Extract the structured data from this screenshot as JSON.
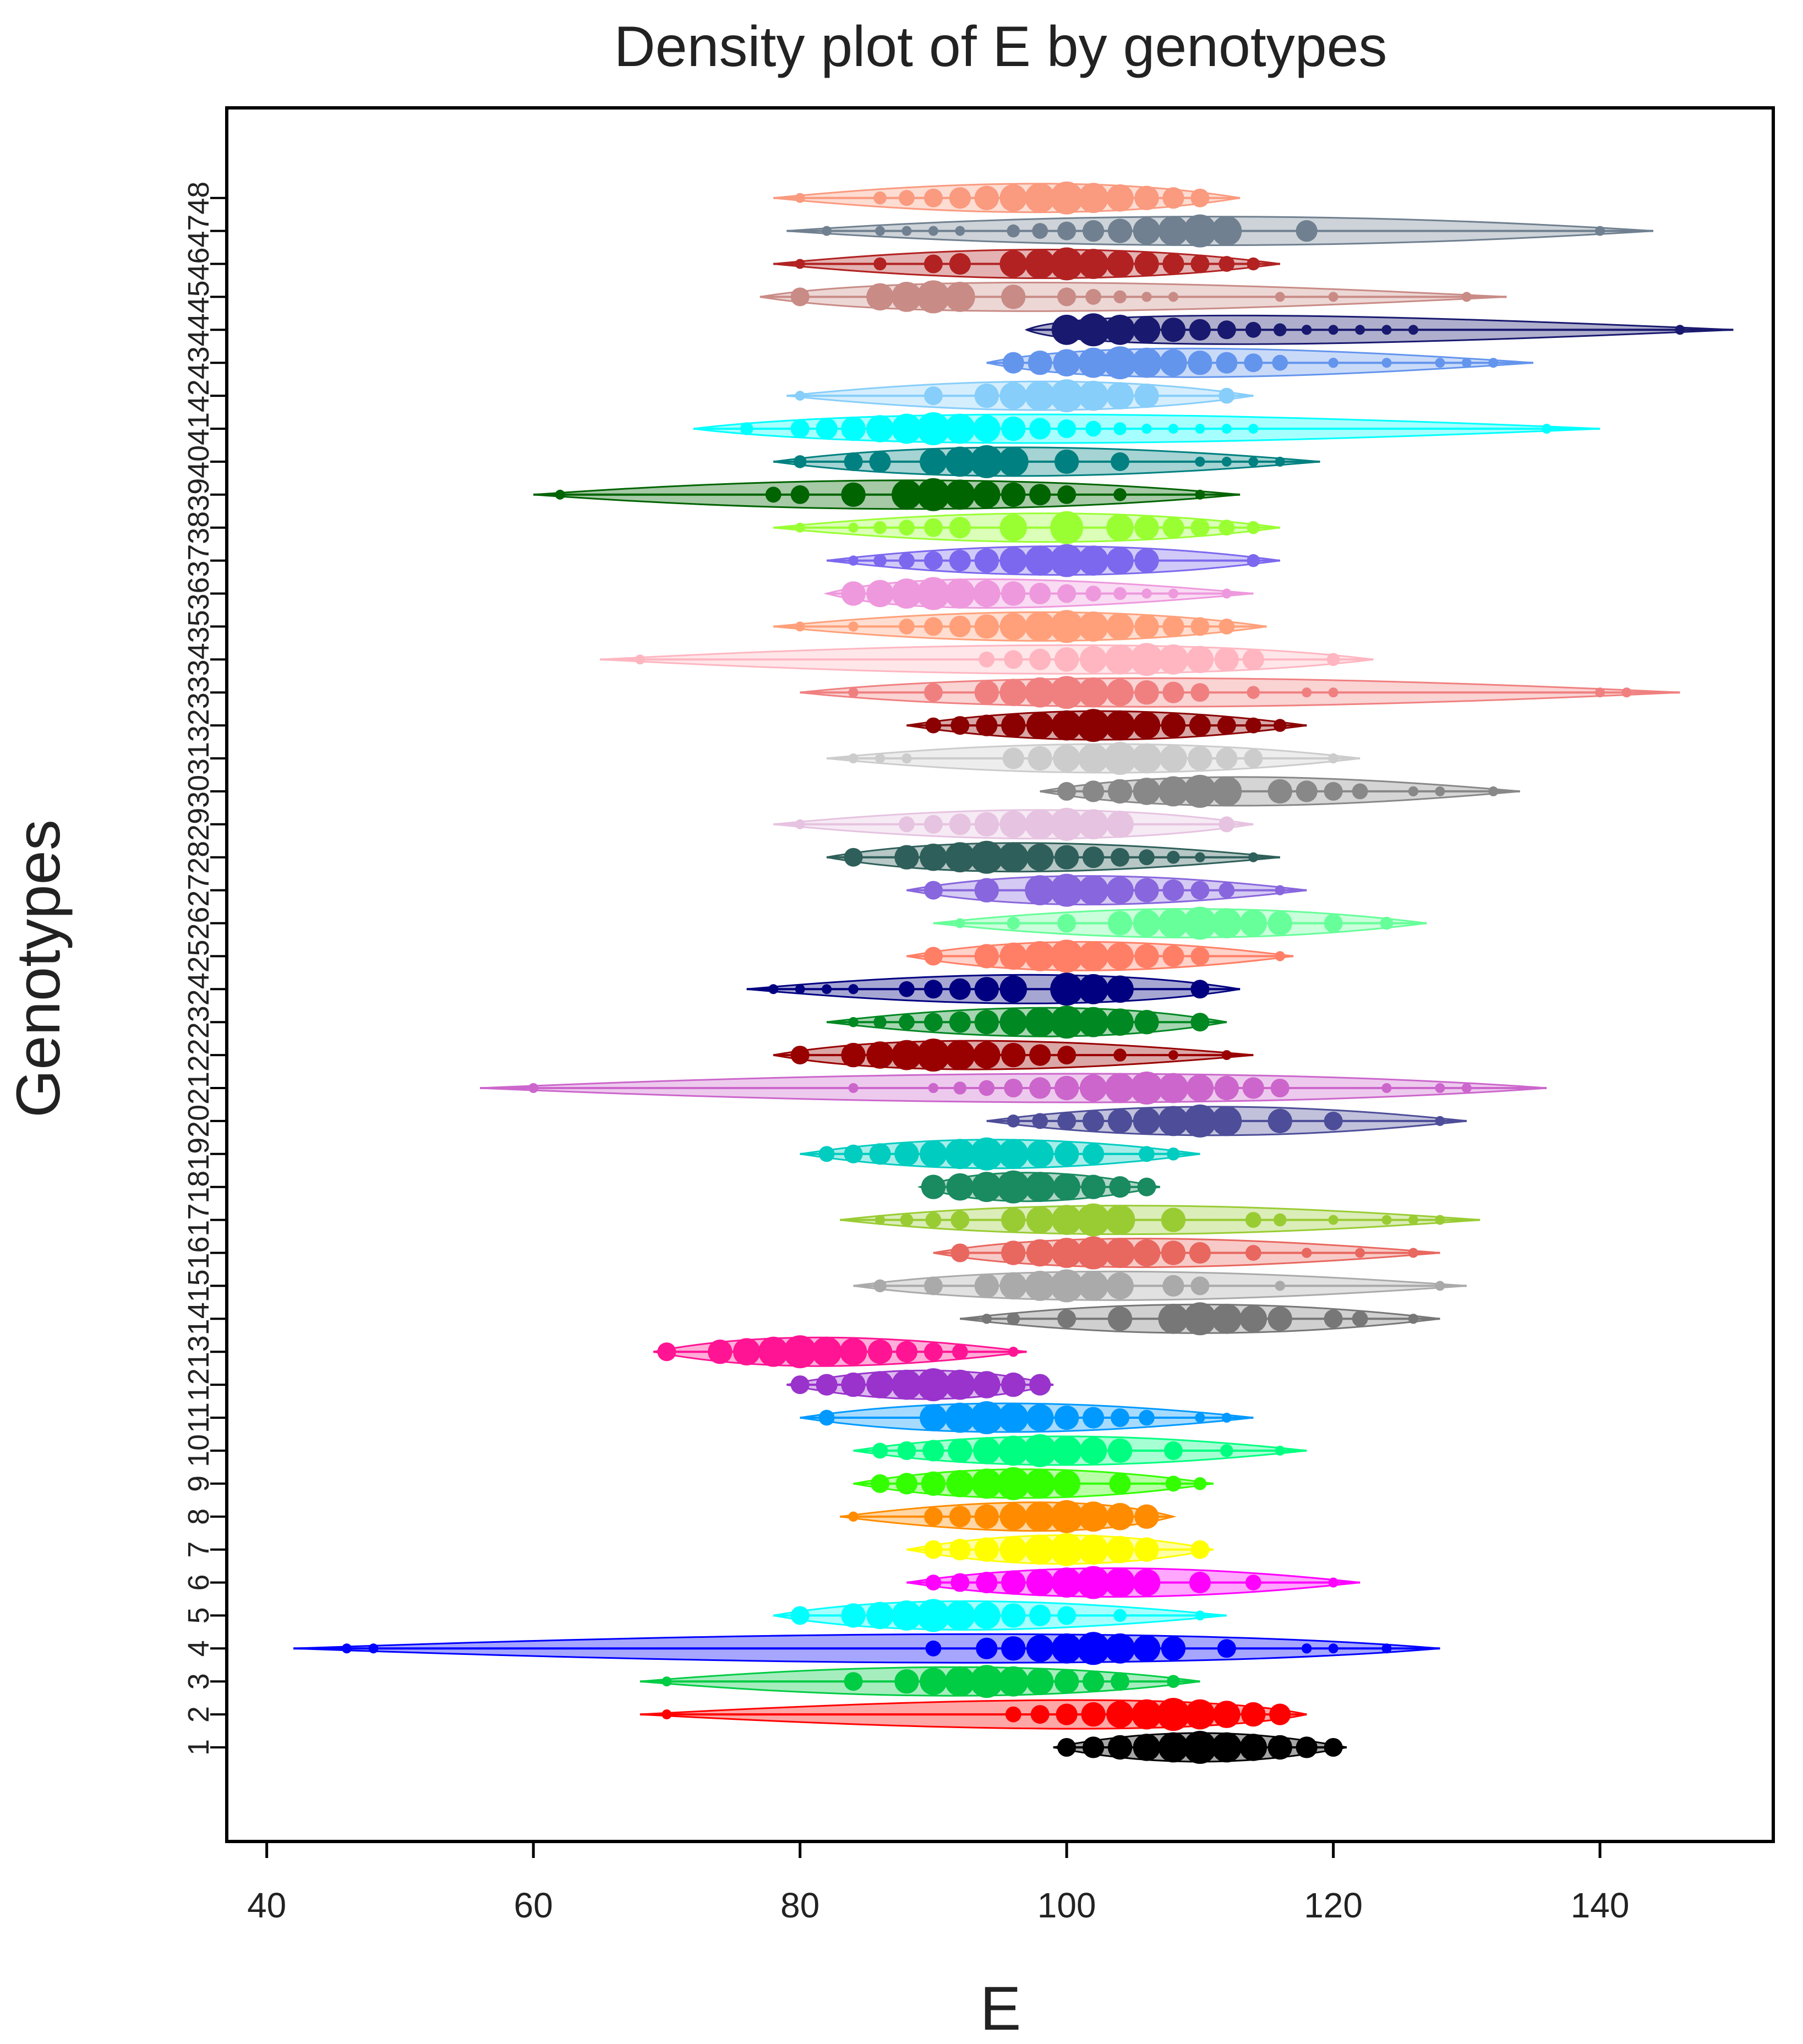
{
  "chart_data": {
    "type": "density",
    "title": "Density plot of E by genotypes",
    "xlabel": "E",
    "ylabel": "Genotypes",
    "xlim": [
      37,
      153
    ],
    "xticks": [
      40,
      60,
      80,
      100,
      120,
      140
    ],
    "grid": false,
    "legend": "none",
    "series": [
      {
        "name": "1",
        "color": "#000000",
        "min": 99,
        "max": 121,
        "mode": 110,
        "points": [
          100,
          102,
          104,
          106,
          108,
          110,
          112,
          114,
          116,
          118,
          120
        ]
      },
      {
        "name": "2",
        "color": "#ff0000",
        "min": 68,
        "max": 118,
        "mode": 108,
        "points": [
          70,
          96,
          98,
          100,
          102,
          104,
          106,
          108,
          110,
          112,
          114,
          116
        ]
      },
      {
        "name": "3",
        "color": "#00cc44",
        "min": 68,
        "max": 110,
        "mode": 94,
        "points": [
          70,
          84,
          88,
          90,
          92,
          94,
          96,
          98,
          100,
          102,
          104,
          108
        ]
      },
      {
        "name": "4",
        "color": "#0000ff",
        "min": 42,
        "max": 128,
        "mode": 102,
        "points": [
          46,
          48,
          90,
          94,
          96,
          98,
          100,
          102,
          104,
          106,
          108,
          112,
          118,
          120,
          124
        ]
      },
      {
        "name": "5",
        "color": "#00ffff",
        "min": 78,
        "max": 112,
        "mode": 90,
        "points": [
          80,
          84,
          86,
          88,
          90,
          92,
          94,
          96,
          98,
          100,
          104,
          110
        ]
      },
      {
        "name": "6",
        "color": "#ff00ff",
        "min": 88,
        "max": 122,
        "mode": 102,
        "points": [
          90,
          92,
          94,
          96,
          98,
          100,
          102,
          104,
          106,
          110,
          114,
          120
        ]
      },
      {
        "name": "7",
        "color": "#ffff00",
        "min": 88,
        "max": 111,
        "mode": 100,
        "points": [
          90,
          92,
          94,
          96,
          98,
          100,
          102,
          104,
          106,
          110
        ]
      },
      {
        "name": "8",
        "color": "#ff8c00",
        "min": 83,
        "max": 108,
        "mode": 100,
        "points": [
          84,
          90,
          92,
          94,
          96,
          98,
          100,
          102,
          104,
          106
        ]
      },
      {
        "name": "9",
        "color": "#33ff00",
        "min": 84,
        "max": 111,
        "mode": 96,
        "points": [
          86,
          88,
          90,
          92,
          94,
          96,
          98,
          100,
          104,
          108,
          110
        ]
      },
      {
        "name": "10",
        "color": "#00ff80",
        "min": 84,
        "max": 118,
        "mode": 98,
        "points": [
          86,
          88,
          90,
          92,
          94,
          96,
          98,
          100,
          102,
          104,
          108,
          112,
          116
        ]
      },
      {
        "name": "11",
        "color": "#0099ff",
        "min": 80,
        "max": 114,
        "mode": 94,
        "points": [
          82,
          90,
          92,
          94,
          96,
          98,
          100,
          102,
          104,
          106,
          110,
          112
        ]
      },
      {
        "name": "12",
        "color": "#9933cc",
        "min": 79,
        "max": 99,
        "mode": 90,
        "points": [
          80,
          82,
          84,
          86,
          88,
          90,
          92,
          94,
          96,
          98
        ]
      },
      {
        "name": "13",
        "color": "#ff1493",
        "min": 69,
        "max": 97,
        "mode": 80,
        "points": [
          70,
          74,
          76,
          78,
          80,
          82,
          84,
          86,
          88,
          90,
          92,
          96
        ]
      },
      {
        "name": "14",
        "color": "#777777",
        "min": 92,
        "max": 128,
        "mode": 110,
        "points": [
          94,
          96,
          100,
          104,
          108,
          110,
          112,
          114,
          116,
          120,
          122,
          126
        ]
      },
      {
        "name": "15",
        "color": "#aaaaaa",
        "min": 84,
        "max": 130,
        "mode": 100,
        "points": [
          86,
          90,
          94,
          96,
          98,
          100,
          102,
          104,
          108,
          110,
          116,
          128
        ]
      },
      {
        "name": "16",
        "color": "#e8675f",
        "min": 90,
        "max": 128,
        "mode": 102,
        "points": [
          92,
          96,
          98,
          100,
          102,
          104,
          106,
          108,
          110,
          114,
          118,
          122,
          126
        ]
      },
      {
        "name": "17",
        "color": "#99cc33",
        "min": 83,
        "max": 131,
        "mode": 102,
        "points": [
          86,
          88,
          90,
          92,
          96,
          98,
          100,
          102,
          104,
          108,
          114,
          116,
          120,
          124,
          126,
          128
        ]
      },
      {
        "name": "18",
        "color": "#1a8a60",
        "min": 89,
        "max": 107,
        "mode": 96,
        "points": [
          90,
          92,
          94,
          96,
          98,
          100,
          102,
          104,
          106
        ]
      },
      {
        "name": "19",
        "color": "#00ccc0",
        "min": 80,
        "max": 110,
        "mode": 94,
        "points": [
          82,
          84,
          86,
          88,
          90,
          92,
          94,
          96,
          98,
          100,
          102,
          106,
          108
        ]
      },
      {
        "name": "20",
        "color": "#4d4d99",
        "min": 94,
        "max": 130,
        "mode": 110,
        "points": [
          96,
          98,
          100,
          102,
          104,
          106,
          108,
          110,
          112,
          116,
          120,
          128
        ]
      },
      {
        "name": "21",
        "color": "#cc66cc",
        "min": 56,
        "max": 136,
        "mode": 106,
        "points": [
          60,
          84,
          90,
          92,
          94,
          96,
          98,
          100,
          102,
          104,
          106,
          108,
          110,
          112,
          114,
          116,
          124,
          128,
          130
        ]
      },
      {
        "name": "22",
        "color": "#990000",
        "min": 78,
        "max": 114,
        "mode": 90,
        "points": [
          80,
          84,
          86,
          88,
          90,
          92,
          94,
          96,
          98,
          100,
          104,
          108,
          112
        ]
      },
      {
        "name": "23",
        "color": "#008822",
        "min": 82,
        "max": 112,
        "mode": 100,
        "points": [
          84,
          86,
          88,
          90,
          92,
          94,
          96,
          98,
          100,
          102,
          104,
          106,
          110
        ]
      },
      {
        "name": "24",
        "color": "#000080",
        "min": 76,
        "max": 113,
        "mode": 100,
        "points": [
          78,
          80,
          82,
          84,
          88,
          90,
          92,
          94,
          96,
          100,
          102,
          104,
          110
        ]
      },
      {
        "name": "25",
        "color": "#ff7f66",
        "min": 88,
        "max": 117,
        "mode": 100,
        "points": [
          90,
          94,
          96,
          98,
          100,
          102,
          104,
          106,
          108,
          110,
          116
        ]
      },
      {
        "name": "26",
        "color": "#66ff99",
        "min": 90,
        "max": 127,
        "mode": 110,
        "points": [
          92,
          96,
          100,
          104,
          106,
          108,
          110,
          112,
          114,
          116,
          120,
          124
        ]
      },
      {
        "name": "27",
        "color": "#8866dd",
        "min": 88,
        "max": 118,
        "mode": 100,
        "points": [
          90,
          94,
          98,
          100,
          102,
          104,
          106,
          108,
          110,
          112,
          116
        ]
      },
      {
        "name": "28",
        "color": "#2f5f5a",
        "min": 82,
        "max": 116,
        "mode": 94,
        "points": [
          84,
          88,
          90,
          92,
          94,
          96,
          98,
          100,
          102,
          104,
          106,
          108,
          110,
          114
        ]
      },
      {
        "name": "29",
        "color": "#e6c3e0",
        "min": 78,
        "max": 114,
        "mode": 100,
        "points": [
          80,
          88,
          90,
          92,
          94,
          96,
          98,
          100,
          102,
          104,
          112
        ]
      },
      {
        "name": "30",
        "color": "#888888",
        "min": 98,
        "max": 134,
        "mode": 110,
        "points": [
          100,
          102,
          104,
          106,
          108,
          110,
          112,
          116,
          118,
          120,
          122,
          126,
          128,
          132
        ]
      },
      {
        "name": "31",
        "color": "#cccccc",
        "min": 82,
        "max": 122,
        "mode": 104,
        "points": [
          84,
          86,
          88,
          96,
          98,
          100,
          102,
          104,
          106,
          108,
          110,
          112,
          114,
          120
        ]
      },
      {
        "name": "32",
        "color": "#8b0000",
        "min": 88,
        "max": 118,
        "mode": 102,
        "points": [
          90,
          92,
          94,
          96,
          98,
          100,
          102,
          104,
          106,
          108,
          110,
          112,
          114,
          116
        ]
      },
      {
        "name": "33",
        "color": "#f08080",
        "min": 80,
        "max": 146,
        "mode": 100,
        "points": [
          84,
          90,
          94,
          96,
          98,
          100,
          102,
          104,
          106,
          108,
          110,
          114,
          118,
          120,
          140,
          142
        ]
      },
      {
        "name": "34",
        "color": "#ffb6c1",
        "min": 65,
        "max": 123,
        "mode": 106,
        "points": [
          68,
          94,
          96,
          98,
          100,
          102,
          104,
          106,
          108,
          110,
          112,
          114,
          120
        ]
      },
      {
        "name": "35",
        "color": "#ffa07a",
        "min": 78,
        "max": 115,
        "mode": 100,
        "points": [
          80,
          84,
          88,
          90,
          92,
          94,
          96,
          98,
          100,
          102,
          104,
          106,
          108,
          110,
          112
        ]
      },
      {
        "name": "36",
        "color": "#ee99dd",
        "min": 82,
        "max": 114,
        "mode": 90,
        "points": [
          84,
          86,
          88,
          90,
          92,
          94,
          96,
          98,
          100,
          102,
          104,
          106,
          108,
          112
        ]
      },
      {
        "name": "37",
        "color": "#7b68ee",
        "min": 82,
        "max": 116,
        "mode": 100,
        "points": [
          84,
          86,
          88,
          90,
          92,
          94,
          96,
          98,
          100,
          102,
          104,
          106,
          114
        ]
      },
      {
        "name": "38",
        "color": "#99ff33",
        "min": 78,
        "max": 116,
        "mode": 100,
        "points": [
          80,
          84,
          86,
          88,
          90,
          92,
          96,
          100,
          104,
          106,
          108,
          110,
          112,
          114
        ]
      },
      {
        "name": "39",
        "color": "#006400",
        "min": 60,
        "max": 113,
        "mode": 90,
        "points": [
          62,
          78,
          80,
          84,
          88,
          90,
          92,
          94,
          96,
          98,
          100,
          104,
          110
        ]
      },
      {
        "name": "40",
        "color": "#008080",
        "min": 78,
        "max": 119,
        "mode": 94,
        "points": [
          80,
          84,
          86,
          90,
          92,
          94,
          96,
          100,
          104,
          110,
          112,
          114,
          116
        ]
      },
      {
        "name": "41",
        "color": "#00ffff",
        "min": 72,
        "max": 140,
        "mode": 90,
        "points": [
          76,
          80,
          82,
          84,
          86,
          88,
          90,
          92,
          94,
          96,
          98,
          100,
          102,
          104,
          106,
          108,
          110,
          112,
          114,
          136
        ]
      },
      {
        "name": "42",
        "color": "#87cefa",
        "min": 79,
        "max": 114,
        "mode": 100,
        "points": [
          80,
          90,
          94,
          96,
          98,
          100,
          102,
          104,
          106,
          112
        ]
      },
      {
        "name": "43",
        "color": "#6495ed",
        "min": 94,
        "max": 135,
        "mode": 104,
        "points": [
          96,
          98,
          100,
          102,
          104,
          106,
          108,
          110,
          112,
          114,
          116,
          120,
          124,
          128,
          130,
          132
        ]
      },
      {
        "name": "44",
        "color": "#191970",
        "min": 97,
        "max": 150,
        "mode": 102,
        "points": [
          100,
          102,
          104,
          106,
          108,
          110,
          112,
          114,
          116,
          118,
          120,
          122,
          124,
          126,
          146
        ]
      },
      {
        "name": "45",
        "color": "#c98b86",
        "min": 77,
        "max": 133,
        "mode": 90,
        "points": [
          80,
          86,
          88,
          90,
          92,
          96,
          100,
          102,
          104,
          106,
          108,
          116,
          120,
          130
        ]
      },
      {
        "name": "46",
        "color": "#b22222",
        "min": 78,
        "max": 116,
        "mode": 100,
        "points": [
          80,
          86,
          90,
          92,
          96,
          98,
          100,
          102,
          104,
          106,
          108,
          110,
          112,
          114
        ]
      },
      {
        "name": "47",
        "color": "#708090",
        "min": 79,
        "max": 144,
        "mode": 110,
        "points": [
          82,
          86,
          88,
          90,
          92,
          96,
          98,
          100,
          102,
          104,
          106,
          108,
          110,
          112,
          118,
          140
        ]
      },
      {
        "name": "48",
        "color": "#fa9a7f",
        "min": 78,
        "max": 113,
        "mode": 100,
        "points": [
          80,
          86,
          88,
          90,
          92,
          94,
          96,
          98,
          100,
          102,
          104,
          106,
          108,
          110
        ]
      }
    ]
  }
}
